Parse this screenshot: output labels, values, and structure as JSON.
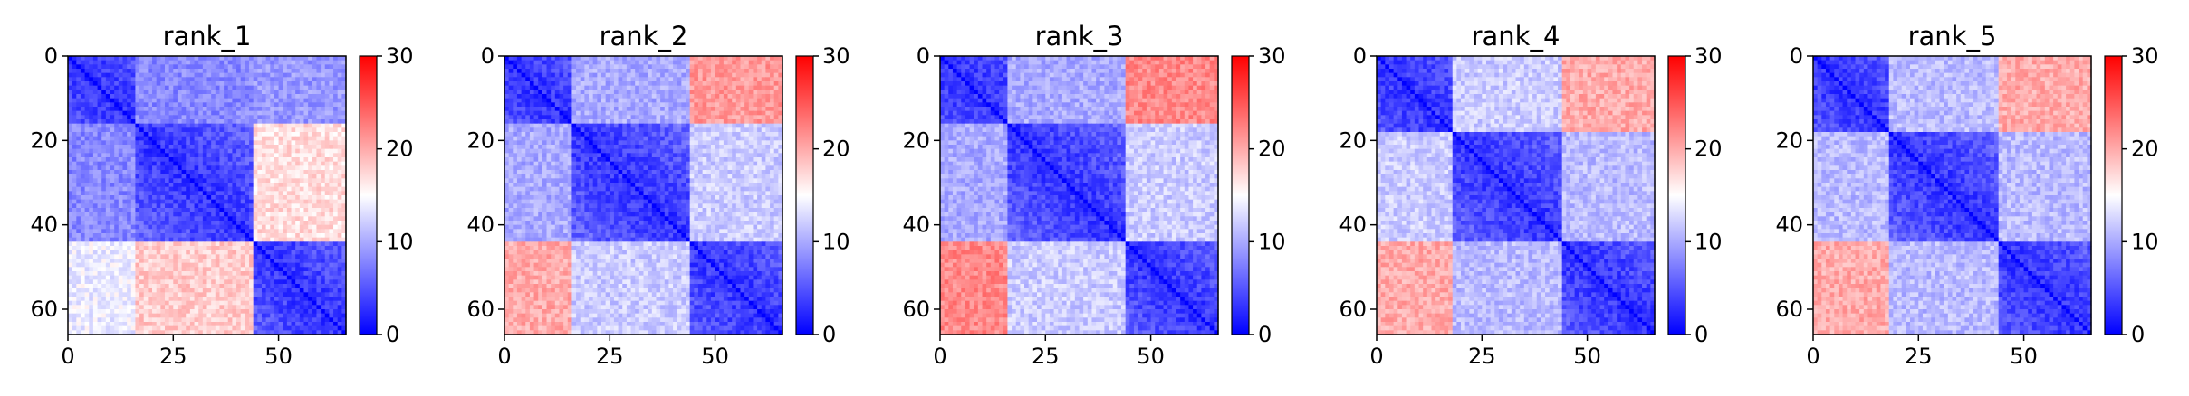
{
  "chart_data": [
    {
      "type": "heatmap",
      "title": "rank_1",
      "xlim": [
        0,
        66
      ],
      "ylim": [
        66,
        0
      ],
      "x_ticks": [
        "0",
        "25",
        "50"
      ],
      "x_tick_values": [
        0,
        25,
        50
      ],
      "y_ticks": [
        "0",
        "20",
        "40",
        "60"
      ],
      "y_tick_values": [
        0,
        20,
        40,
        60
      ],
      "colorbar": {
        "range": [
          0,
          30
        ],
        "ticks": [
          "0",
          "10",
          "20",
          "30"
        ],
        "tick_values": [
          0,
          10,
          20,
          30
        ],
        "cmap": "bwr"
      },
      "domains": [
        [
          0,
          16
        ],
        [
          16,
          44
        ],
        [
          44,
          66
        ]
      ],
      "domain_values": [
        [
          3,
          8,
          9
        ],
        [
          8,
          3,
          17
        ],
        [
          14,
          18,
          3
        ]
      ]
    },
    {
      "type": "heatmap",
      "title": "rank_2",
      "xlim": [
        0,
        66
      ],
      "ylim": [
        66,
        0
      ],
      "x_ticks": [
        "0",
        "25",
        "50"
      ],
      "x_tick_values": [
        0,
        25,
        50
      ],
      "y_ticks": [
        "0",
        "20",
        "40",
        "60"
      ],
      "y_tick_values": [
        0,
        20,
        40,
        60
      ],
      "colorbar": {
        "range": [
          0,
          30
        ],
        "ticks": [
          "0",
          "10",
          "20",
          "30"
        ],
        "tick_values": [
          0,
          10,
          20,
          30
        ],
        "cmap": "bwr"
      },
      "domains": [
        [
          0,
          16
        ],
        [
          16,
          44
        ],
        [
          44,
          66
        ]
      ],
      "domain_values": [
        [
          3,
          10,
          21
        ],
        [
          10,
          3,
          12
        ],
        [
          20,
          12,
          3
        ]
      ]
    },
    {
      "type": "heatmap",
      "title": "rank_3",
      "xlim": [
        0,
        66
      ],
      "ylim": [
        66,
        0
      ],
      "x_ticks": [
        "0",
        "25",
        "50"
      ],
      "x_tick_values": [
        0,
        25,
        50
      ],
      "y_ticks": [
        "0",
        "20",
        "40",
        "60"
      ],
      "y_tick_values": [
        0,
        20,
        40,
        60
      ],
      "colorbar": {
        "range": [
          0,
          30
        ],
        "ticks": [
          "0",
          "10",
          "20",
          "30"
        ],
        "tick_values": [
          0,
          10,
          20,
          30
        ],
        "cmap": "bwr"
      },
      "domains": [
        [
          0,
          16
        ],
        [
          16,
          44
        ],
        [
          44,
          66
        ]
      ],
      "domain_values": [
        [
          3,
          10,
          22
        ],
        [
          10,
          3,
          12
        ],
        [
          22,
          12,
          3
        ]
      ]
    },
    {
      "type": "heatmap",
      "title": "rank_4",
      "xlim": [
        0,
        66
      ],
      "ylim": [
        66,
        0
      ],
      "x_ticks": [
        "0",
        "25",
        "50"
      ],
      "x_tick_values": [
        0,
        25,
        50
      ],
      "y_ticks": [
        "0",
        "20",
        "40",
        "60"
      ],
      "y_tick_values": [
        0,
        20,
        40,
        60
      ],
      "colorbar": {
        "range": [
          0,
          30
        ],
        "ticks": [
          "0",
          "10",
          "20",
          "30"
        ],
        "tick_values": [
          0,
          10,
          20,
          30
        ],
        "cmap": "bwr"
      },
      "domains": [
        [
          0,
          18
        ],
        [
          18,
          44
        ],
        [
          44,
          66
        ]
      ],
      "domain_values": [
        [
          3,
          12,
          20
        ],
        [
          12,
          3,
          11
        ],
        [
          20,
          11,
          3
        ]
      ]
    },
    {
      "type": "heatmap",
      "title": "rank_5",
      "xlim": [
        0,
        66
      ],
      "ylim": [
        66,
        0
      ],
      "x_ticks": [
        "0",
        "25",
        "50"
      ],
      "x_tick_values": [
        0,
        25,
        50
      ],
      "y_ticks": [
        "0",
        "20",
        "40",
        "60"
      ],
      "y_tick_values": [
        0,
        20,
        40,
        60
      ],
      "colorbar": {
        "range": [
          0,
          30
        ],
        "ticks": [
          "0",
          "10",
          "20",
          "30"
        ],
        "tick_values": [
          0,
          10,
          20,
          30
        ],
        "cmap": "bwr"
      },
      "domains": [
        [
          0,
          18
        ],
        [
          18,
          44
        ],
        [
          44,
          66
        ]
      ],
      "domain_values": [
        [
          3,
          11,
          20
        ],
        [
          11,
          3,
          11
        ],
        [
          20,
          11,
          3
        ]
      ]
    }
  ]
}
